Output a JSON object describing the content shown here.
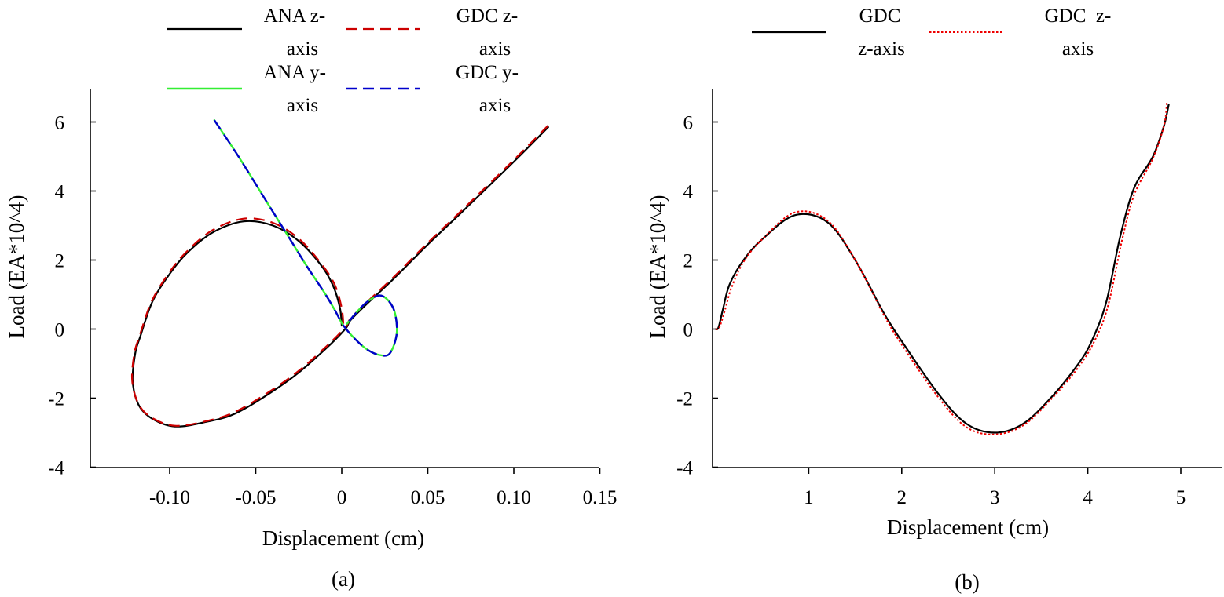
{
  "chart_data": [
    {
      "type": "line",
      "panel_caption": "(a)",
      "xlabel": "Displacement (cm)",
      "ylabel": "Load (EA*10^4)",
      "xlim": [
        -0.15,
        0.15
      ],
      "ylim": [
        -4,
        7
      ],
      "x_ticks": [
        {
          "value": -0.1,
          "label": "-0.10"
        },
        {
          "value": -0.05,
          "label": "-0.05"
        },
        {
          "value": 0,
          "label": "0"
        },
        {
          "value": 0.05,
          "label": "0.05"
        },
        {
          "value": 0.1,
          "label": "0.10"
        },
        {
          "value": 0.15,
          "label": "0.15"
        }
      ],
      "y_ticks": [
        {
          "value": -4,
          "label": "-4"
        },
        {
          "value": -2,
          "label": "-2"
        },
        {
          "value": 0,
          "label": "0"
        },
        {
          "value": 2,
          "label": "2"
        },
        {
          "value": 4,
          "label": "4"
        },
        {
          "value": 6,
          "label": "6"
        }
      ],
      "legend": [
        {
          "label_line1": "ANA z-",
          "label_line2": "axis",
          "color": "#000000",
          "dash": "solid"
        },
        {
          "label_line1": "GDC z-",
          "label_line2": "axis",
          "color": "#cc0000",
          "dash": "dashed"
        },
        {
          "label_line1": "ANA y-",
          "label_line2": "axis",
          "color": "#33ee33",
          "dash": "solid"
        },
        {
          "label_line1": "GDC y-",
          "label_line2": "axis",
          "color": "#0000cc",
          "dash": "dashed"
        }
      ],
      "series": [
        {
          "name": "ANA z-axis",
          "color": "#000000",
          "dash": "solid",
          "width": 2.2,
          "points": [
            [
              0.12,
              5.85
            ],
            [
              0.1,
              4.85
            ],
            [
              0.07,
              3.4
            ],
            [
              0.05,
              2.45
            ],
            [
              0.03,
              1.45
            ],
            [
              0.015,
              0.75
            ],
            [
              0.005,
              0.25
            ],
            [
              0.002,
              0.0
            ],
            [
              -0.01,
              -0.6
            ],
            [
              -0.03,
              -1.45
            ],
            [
              -0.06,
              -2.4
            ],
            [
              -0.08,
              -2.7
            ],
            [
              -0.097,
              -2.82
            ],
            [
              -0.11,
              -2.6
            ],
            [
              -0.118,
              -2.2
            ],
            [
              -0.1215,
              -1.5
            ],
            [
              -0.12,
              -0.7
            ],
            [
              -0.117,
              -0.2
            ],
            [
              -0.11,
              0.8
            ],
            [
              -0.1,
              1.6
            ],
            [
              -0.09,
              2.2
            ],
            [
              -0.075,
              2.8
            ],
            [
              -0.057,
              3.12
            ],
            [
              -0.04,
              3.0
            ],
            [
              -0.025,
              2.55
            ],
            [
              -0.012,
              1.85
            ],
            [
              -0.005,
              1.25
            ],
            [
              -0.001,
              0.6
            ],
            [
              0.0,
              0.1
            ]
          ]
        },
        {
          "name": "GDC z-axis",
          "color": "#cc0000",
          "dash": "dashed",
          "width": 2.2,
          "points": [
            [
              0.12,
              5.9
            ],
            [
              0.1,
              4.9
            ],
            [
              0.07,
              3.45
            ],
            [
              0.05,
              2.5
            ],
            [
              0.03,
              1.5
            ],
            [
              0.015,
              0.8
            ],
            [
              0.005,
              0.3
            ],
            [
              0.002,
              0.05
            ],
            [
              -0.01,
              -0.55
            ],
            [
              -0.03,
              -1.4
            ],
            [
              -0.06,
              -2.35
            ],
            [
              -0.08,
              -2.68
            ],
            [
              -0.097,
              -2.8
            ],
            [
              -0.11,
              -2.58
            ],
            [
              -0.118,
              -2.18
            ],
            [
              -0.1218,
              -1.5
            ],
            [
              -0.1205,
              -0.7
            ],
            [
              -0.1175,
              -0.2
            ],
            [
              -0.1105,
              0.8
            ],
            [
              -0.1005,
              1.62
            ],
            [
              -0.09,
              2.25
            ],
            [
              -0.075,
              2.87
            ],
            [
              -0.057,
              3.2
            ],
            [
              -0.04,
              3.08
            ],
            [
              -0.025,
              2.62
            ],
            [
              -0.012,
              1.9
            ],
            [
              -0.004,
              1.28
            ],
            [
              0.0,
              0.6
            ],
            [
              0.001,
              0.1
            ]
          ]
        },
        {
          "name": "ANA y-axis",
          "color": "#33ee33",
          "dash": "solid",
          "width": 2.4,
          "points": [
            [
              -0.074,
              6.05
            ],
            [
              -0.06,
              5.0
            ],
            [
              -0.045,
              3.8
            ],
            [
              -0.03,
              2.6
            ],
            [
              -0.02,
              1.8
            ],
            [
              -0.01,
              1.05
            ],
            [
              -0.004,
              0.55
            ],
            [
              0.001,
              0.1
            ],
            [
              0.008,
              -0.3
            ],
            [
              0.015,
              -0.6
            ],
            [
              0.022,
              -0.75
            ],
            [
              0.028,
              -0.7
            ],
            [
              0.032,
              -0.1
            ],
            [
              0.03,
              0.6
            ],
            [
              0.023,
              0.97
            ],
            [
              0.015,
              0.8
            ],
            [
              0.008,
              0.45
            ],
            [
              0.003,
              0.15
            ]
          ]
        },
        {
          "name": "GDC y-axis",
          "color": "#0000cc",
          "dash": "dashed",
          "width": 2.4,
          "points": [
            [
              -0.074,
              6.05
            ],
            [
              -0.06,
              5.0
            ],
            [
              -0.045,
              3.8
            ],
            [
              -0.03,
              2.6
            ],
            [
              -0.02,
              1.8
            ],
            [
              -0.01,
              1.05
            ],
            [
              -0.004,
              0.55
            ],
            [
              0.001,
              0.1
            ],
            [
              0.008,
              -0.3
            ],
            [
              0.015,
              -0.6
            ],
            [
              0.022,
              -0.75
            ],
            [
              0.028,
              -0.7
            ],
            [
              0.032,
              -0.1
            ],
            [
              0.03,
              0.6
            ],
            [
              0.023,
              0.97
            ],
            [
              0.015,
              0.8
            ],
            [
              0.008,
              0.45
            ],
            [
              0.003,
              0.15
            ]
          ]
        }
      ]
    },
    {
      "type": "line",
      "panel_caption": "(b)",
      "xlabel": "Displacement (cm)",
      "ylabel": "Load (EA*10^4)",
      "xlim": [
        0,
        5.5
      ],
      "ylim": [
        -4,
        7
      ],
      "x_ticks": [
        {
          "value": 1,
          "label": "1"
        },
        {
          "value": 2,
          "label": "2"
        },
        {
          "value": 3,
          "label": "3"
        },
        {
          "value": 4,
          "label": "4"
        },
        {
          "value": 5,
          "label": "5"
        }
      ],
      "y_ticks": [
        {
          "value": -4,
          "label": "-4"
        },
        {
          "value": -2,
          "label": "-2"
        },
        {
          "value": 0,
          "label": "0"
        },
        {
          "value": 2,
          "label": "2"
        },
        {
          "value": 4,
          "label": "4"
        },
        {
          "value": 6,
          "label": "6"
        }
      ],
      "legend": [
        {
          "label_line1": "GDC",
          "label_line2": "z-axis",
          "color": "#000000",
          "dash": "solid"
        },
        {
          "label_line1": "GDC  z-",
          "label_line2": "axis",
          "color": "#ee0000",
          "dash": "dotted"
        }
      ],
      "series": [
        {
          "name": "GDC z-axis",
          "color": "#000000",
          "dash": "solid",
          "width": 2.2,
          "points": [
            [
              0.0,
              0.0
            ],
            [
              0.03,
              0.05
            ],
            [
              0.08,
              0.6
            ],
            [
              0.15,
              1.3
            ],
            [
              0.3,
              2.0
            ],
            [
              0.5,
              2.6
            ],
            [
              0.85,
              3.3
            ],
            [
              1.2,
              3.1
            ],
            [
              1.5,
              2.0
            ],
            [
              1.8,
              0.5
            ],
            [
              2.0,
              -0.35
            ],
            [
              2.4,
              -1.9
            ],
            [
              2.7,
              -2.75
            ],
            [
              3.0,
              -3.0
            ],
            [
              3.3,
              -2.75
            ],
            [
              3.6,
              -2.0
            ],
            [
              3.9,
              -1.0
            ],
            [
              4.05,
              -0.3
            ],
            [
              4.2,
              0.8
            ],
            [
              4.35,
              2.7
            ],
            [
              4.5,
              4.1
            ],
            [
              4.7,
              5.0
            ],
            [
              4.82,
              5.9
            ],
            [
              4.87,
              6.5
            ]
          ]
        },
        {
          "name": "GDC  z-axis",
          "color": "#ee0000",
          "dash": "dotted",
          "width": 2.0,
          "points": [
            [
              0.0,
              0.0
            ],
            [
              0.04,
              0.05
            ],
            [
              0.1,
              0.55
            ],
            [
              0.17,
              1.2
            ],
            [
              0.3,
              1.95
            ],
            [
              0.5,
              2.6
            ],
            [
              0.85,
              3.38
            ],
            [
              1.2,
              3.15
            ],
            [
              1.5,
              2.0
            ],
            [
              1.8,
              0.45
            ],
            [
              2.0,
              -0.45
            ],
            [
              2.4,
              -2.0
            ],
            [
              2.7,
              -2.85
            ],
            [
              3.0,
              -3.05
            ],
            [
              3.3,
              -2.8
            ],
            [
              3.6,
              -2.05
            ],
            [
              3.9,
              -1.1
            ],
            [
              4.08,
              -0.3
            ],
            [
              4.22,
              0.7
            ],
            [
              4.37,
              2.6
            ],
            [
              4.5,
              3.9
            ],
            [
              4.7,
              4.95
            ],
            [
              4.82,
              5.9
            ],
            [
              4.85,
              6.55
            ]
          ]
        }
      ]
    }
  ]
}
